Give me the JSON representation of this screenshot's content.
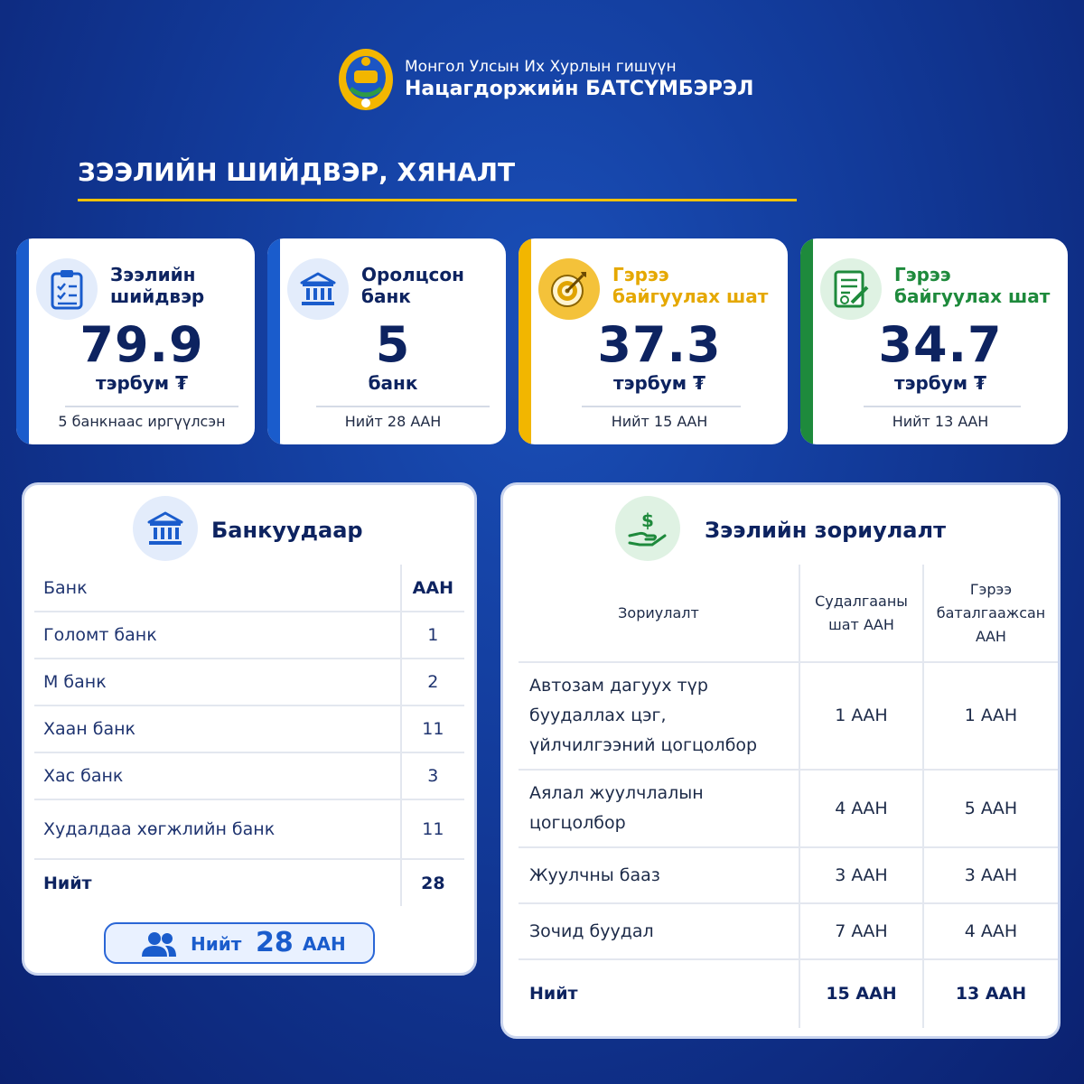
{
  "header": {
    "line1": "Монгол Улсын Их Хурлын гишүүн",
    "line2": "Нацагдоржийн БАТСҮМБЭРЭЛ"
  },
  "page_title": "ЗЭЭЛИЙН ШИЙДВЭР, ХЯНАЛТ",
  "colors": {
    "accent_blue": "#1a5ccc",
    "accent_gold": "#f2b600",
    "accent_green": "#1e8a3c",
    "navy": "#0d2360"
  },
  "stats": [
    {
      "icon": "clipboard-icon",
      "label1": "Зээлийн",
      "label2": "шийдвэр",
      "value": "79.9",
      "unit": "тэрбум ₮",
      "foot": "5 банкнаас иргүүлсэн"
    },
    {
      "icon": "bank-icon",
      "label1": "Оролцсон",
      "label2": "банк",
      "value": "5",
      "unit": "банк",
      "foot": "Нийт 28 ААН"
    },
    {
      "icon": "target-icon",
      "label1": "Гэрээ",
      "label2": "байгуулах шат",
      "value": "37.3",
      "unit": "тэрбум ₮",
      "foot": "Нийт 15 ААН"
    },
    {
      "icon": "contract-icon",
      "label1": "Гэрээ",
      "label2": "байгуулах шат",
      "value": "34.7",
      "unit": "тэрбум ₮",
      "foot": "Нийт 13 ААН"
    }
  ],
  "banks_panel": {
    "title": "Банкуудаар",
    "header": [
      "Банк",
      "ААН"
    ],
    "rows": [
      [
        "Голомт банк",
        "1"
      ],
      [
        "М банк",
        "2"
      ],
      [
        "Хаан банк",
        "11"
      ],
      [
        "Хас банк",
        "3"
      ],
      [
        "Худалдаа хөгжлийн банк",
        "11"
      ]
    ],
    "total": [
      "Нийт",
      "28"
    ],
    "pill": {
      "prefix": "Нийт",
      "number": "28",
      "suffix": "ААН"
    }
  },
  "purpose_panel": {
    "title": "Зээлийн зориулалт",
    "header": {
      "col1": "Зориулалт",
      "col2_line1": "Судалгааны",
      "col2_line2": "шат ААН",
      "col3_line1": "Гэрээ",
      "col3_line2": "баталгаажсан",
      "col3_line3": "ААН"
    },
    "rows": [
      {
        "lines": [
          "Автозам дагуух түр",
          "буудаллах цэг,",
          "үйлчилгээний цогцолбор"
        ],
        "research": "1 ААН",
        "contract": "1 ААН"
      },
      {
        "lines": [
          "Аялал жуулчлалын",
          "цогцолбор"
        ],
        "research": "4 ААН",
        "contract": "5 ААН"
      },
      {
        "lines": [
          "Жуулчны бааз"
        ],
        "research": "3 ААН",
        "contract": "3 ААН"
      },
      {
        "lines": [
          "Зочид буудал"
        ],
        "research": "7 ААН",
        "contract": "4 ААН"
      }
    ],
    "total": {
      "label": "Нийт",
      "research": "15 ААН",
      "contract": "13 ААН"
    }
  }
}
